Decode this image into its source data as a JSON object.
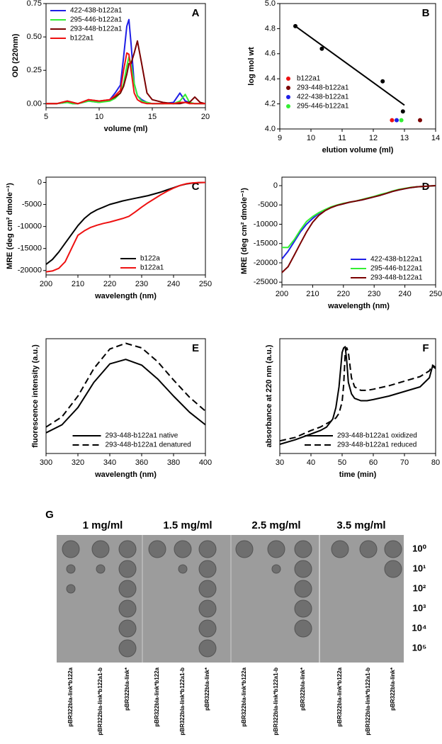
{
  "chart_data": [
    {
      "type": "line",
      "panel_label": "A",
      "xlabel": "volume (ml)",
      "ylabel": "OD (220nm)",
      "legend": "upper left",
      "xlim": [
        5,
        20
      ],
      "xticks": [
        5,
        10,
        15,
        20
      ],
      "ylim": [
        -0.03,
        0.75
      ],
      "yticks": [
        {
          "value": 0,
          "label": "0.00"
        },
        {
          "value": 0.25,
          "label": "0.25"
        },
        {
          "value": 0.5,
          "label": "0.50"
        },
        {
          "value": 0.75,
          "label": "0.75"
        }
      ],
      "x": [
        5,
        6,
        7,
        7.5,
        8,
        9,
        10,
        11,
        11.5,
        12,
        12.3,
        12.6,
        12.8,
        13,
        13.3,
        13.6,
        14,
        14.5,
        15,
        16,
        17,
        17.6,
        18.1,
        18.5,
        19,
        19.5,
        20
      ],
      "series": [
        {
          "name": "422-438-b122a1",
          "color": "#1f1fe6",
          "values": [
            0,
            0,
            0.01,
            0,
            0,
            0.02,
            0.01,
            0.03,
            0.08,
            0.14,
            0.35,
            0.58,
            0.63,
            0.45,
            0.15,
            0.06,
            0.03,
            0.01,
            0,
            0,
            0.01,
            0.08,
            0.02,
            0.01,
            0,
            0,
            0
          ]
        },
        {
          "name": "295-446-b122a1",
          "color": "#33ee33",
          "values": [
            0,
            0,
            0.01,
            0,
            0,
            0.02,
            0.01,
            0.02,
            0.04,
            0.08,
            0.15,
            0.28,
            0.35,
            0.3,
            0.15,
            0.06,
            0.02,
            0.01,
            0,
            0,
            0,
            0.02,
            0.07,
            0.01,
            0,
            0,
            0
          ]
        },
        {
          "name": "293-448-b122a1",
          "color": "#7a0000",
          "values": [
            0,
            0,
            0.02,
            0.01,
            0,
            0.03,
            0.02,
            0.03,
            0.05,
            0.08,
            0.13,
            0.22,
            0.3,
            0.3,
            0.38,
            0.47,
            0.3,
            0.08,
            0.03,
            0.01,
            0,
            0,
            0.01,
            0.01,
            0.05,
            0.01,
            0
          ]
        },
        {
          "name": "b122a1",
          "color": "#ee1111",
          "values": [
            0,
            0,
            0.02,
            0.01,
            0,
            0.03,
            0.02,
            0.03,
            0.06,
            0.1,
            0.25,
            0.38,
            0.37,
            0.25,
            0.08,
            0.03,
            0.01,
            0,
            0,
            0,
            0,
            0.01,
            0.01,
            0,
            0,
            0,
            0
          ]
        }
      ]
    },
    {
      "type": "scatter",
      "panel_label": "B",
      "xlabel": "elution volume (ml)",
      "ylabel": "log mol wt",
      "legend": "lower left",
      "xlim": [
        9,
        14
      ],
      "xticks": [
        9,
        10,
        11,
        12,
        13,
        14
      ],
      "ylim": [
        4.0,
        5.0
      ],
      "yticks": [
        {
          "value": 4,
          "label": "4.0"
        },
        4.2,
        4.4,
        4.6,
        4.8,
        {
          "value": 5,
          "label": "5.0"
        }
      ],
      "series": [
        {
          "color": "#000000",
          "x": [
            9.5,
            10.35,
            12.3,
            12.95
          ],
          "values": [
            4.82,
            4.64,
            4.38,
            4.14
          ]
        },
        {
          "color": "#000000",
          "style": "line",
          "x": [
            9.5,
            13
          ],
          "values": [
            4.82,
            4.19
          ]
        },
        {
          "name": "b122a1",
          "color": "#ee1111",
          "x": [
            12.6
          ],
          "values": [
            4.07
          ]
        },
        {
          "name": "293-448-b122a1",
          "color": "#7a0000",
          "x": [
            13.5
          ],
          "values": [
            4.07
          ]
        },
        {
          "name": "422-438-b122a1",
          "color": "#1f1fe6",
          "x": [
            12.75
          ],
          "values": [
            4.07
          ]
        },
        {
          "name": "295-446-b122a1",
          "color": "#33ee33",
          "x": [
            12.9
          ],
          "values": [
            4.07
          ]
        }
      ]
    },
    {
      "type": "line",
      "panel_label": "C",
      "xlabel": "wavelength (nm)",
      "ylabel": "MRE (deg cm² dmole⁻¹)",
      "legend": "lower right",
      "xlim": [
        200,
        250
      ],
      "xticks": [
        200,
        210,
        220,
        230,
        240,
        250
      ],
      "ylim": [
        -21000,
        1200
      ],
      "yticks": [
        -20000,
        -15000,
        -10000,
        -5000,
        0
      ],
      "x": [
        200,
        202,
        204,
        206,
        208,
        210,
        212,
        214,
        216,
        218,
        220,
        222,
        224,
        226,
        228,
        230,
        232,
        234,
        236,
        238,
        240,
        242,
        244,
        246,
        248,
        250
      ],
      "series": [
        {
          "name": "b122a",
          "color": "#000000",
          "values": [
            -18600,
            -17500,
            -15800,
            -13800,
            -11800,
            -9800,
            -8200,
            -7000,
            -6200,
            -5600,
            -5000,
            -4600,
            -4200,
            -3900,
            -3600,
            -3300,
            -3000,
            -2600,
            -2200,
            -1700,
            -1200,
            -700,
            -350,
            -150,
            -50,
            0
          ]
        },
        {
          "name": "b122a1",
          "color": "#ee1111",
          "values": [
            -20300,
            -20100,
            -19500,
            -18000,
            -15000,
            -12000,
            -11000,
            -10200,
            -9700,
            -9300,
            -9000,
            -8600,
            -8200,
            -7700,
            -6700,
            -5600,
            -4600,
            -3700,
            -2800,
            -2000,
            -1300,
            -700,
            -300,
            -100,
            -30,
            0
          ]
        }
      ]
    },
    {
      "type": "line",
      "panel_label": "D",
      "xlabel": "wavelength (nm)",
      "ylabel": "MRE (deg cm² dmole⁻¹)",
      "legend": "lower right",
      "xlim": [
        200,
        250
      ],
      "xticks": [
        200,
        210,
        220,
        230,
        240,
        250
      ],
      "ylim": [
        -25700,
        2200
      ],
      "yticks": [
        -25000,
        -20000,
        -15000,
        -10000,
        -5000,
        0
      ],
      "x": [
        200,
        202,
        204,
        206,
        208,
        210,
        212,
        214,
        216,
        218,
        220,
        222,
        224,
        226,
        228,
        230,
        232,
        234,
        236,
        238,
        240,
        242,
        244,
        246,
        248,
        250
      ],
      "series": [
        {
          "name": "422-438-b122a1",
          "color": "#1f1fe6",
          "values": [
            -19000,
            -17000,
            -14500,
            -12000,
            -10000,
            -8500,
            -7200,
            -6300,
            -5600,
            -5100,
            -4700,
            -4300,
            -4000,
            -3700,
            -3300,
            -2900,
            -2500,
            -2000,
            -1500,
            -1100,
            -800,
            -500,
            -300,
            -200,
            -100,
            0
          ]
        },
        {
          "name": "295-446-b122a1",
          "color": "#33ee33",
          "values": [
            -16000,
            -16000,
            -14000,
            -11500,
            -9300,
            -8000,
            -7000,
            -6200,
            -5500,
            -5000,
            -4600,
            -4300,
            -4000,
            -3600,
            -3200,
            -2800,
            -2300,
            -1900,
            -1400,
            -1000,
            -700,
            -450,
            -300,
            -200,
            -100,
            0
          ]
        },
        {
          "name": "293-448-b122a1",
          "color": "#7a0000",
          "values": [
            -22500,
            -21000,
            -18000,
            -15000,
            -12000,
            -9500,
            -7700,
            -6500,
            -5700,
            -5100,
            -4700,
            -4300,
            -4000,
            -3700,
            -3300,
            -2900,
            -2500,
            -2000,
            -1500,
            -1100,
            -800,
            -500,
            -300,
            -200,
            -100,
            0
          ]
        }
      ]
    },
    {
      "type": "line",
      "panel_label": "E",
      "xlabel": "wavelength (nm)",
      "ylabel": "fluorescence intensity (a.u.)",
      "legend": "lower center",
      "xlim": [
        300,
        400
      ],
      "xticks": [
        300,
        320,
        340,
        360,
        380,
        400
      ],
      "ylim": [
        0,
        100
      ],
      "x": [
        300,
        310,
        320,
        330,
        340,
        350,
        360,
        370,
        380,
        390,
        400
      ],
      "series": [
        {
          "name": "293-448-b122a1 native",
          "color": "#000000",
          "values": [
            18,
            25,
            40,
            62,
            78,
            82,
            77,
            65,
            50,
            36,
            25
          ]
        },
        {
          "name": "293-448-b122a1 denatured",
          "color": "#000000",
          "dashed": true,
          "values": [
            23,
            32,
            50,
            74,
            91,
            96,
            92,
            80,
            64,
            49,
            37
          ]
        }
      ]
    },
    {
      "type": "line",
      "panel_label": "F",
      "xlabel": "time (min)",
      "ylabel": "absorbance at 220 nm (a.u.)",
      "legend": "lower center",
      "xlim": [
        30,
        80
      ],
      "xticks": [
        30,
        40,
        50,
        60,
        70,
        80
      ],
      "ylim": [
        0,
        100
      ],
      "x": [
        30,
        35,
        40,
        43,
        45,
        47,
        48,
        49,
        50,
        50.5,
        51,
        51.5,
        52,
        53,
        54,
        56,
        58,
        60,
        65,
        70,
        75,
        78,
        79,
        80
      ],
      "series": [
        {
          "name": "293-448-b122a1 oxidized",
          "color": "#000000",
          "values": [
            8,
            12,
            17,
            20,
            23,
            30,
            40,
            58,
            88,
            92,
            93,
            80,
            62,
            52,
            48,
            46,
            46,
            47,
            50,
            54,
            58,
            66,
            76,
            74
          ]
        },
        {
          "name": "293-448-b122a1 reduced",
          "color": "#000000",
          "dashed": true,
          "values": [
            11,
            14,
            20,
            23,
            26,
            29,
            31,
            35,
            45,
            60,
            88,
            92,
            88,
            66,
            58,
            55,
            55,
            56,
            59,
            63,
            67,
            72,
            77,
            75
          ]
        }
      ]
    }
  ],
  "panel_g": {
    "label": "G",
    "concentrations": [
      "1 mg/ml",
      "1.5 mg/ml",
      "2.5 mg/ml",
      "3.5 mg/ml"
    ],
    "dilutions": [
      "10⁰",
      "10¹",
      "10²",
      "10³",
      "10⁴",
      "10⁵"
    ],
    "strains": [
      "pBR322bla-link*b122a",
      "pBR322bla-link*b122a1-b",
      "pBR322bla-link*",
      "pBR322bla-link*b122a",
      "pBR322bla-link*b122a1-b",
      "pBR322bla-link*",
      "pBR322bla-link*b122a",
      "pBR322bla-link*b122a1-b",
      "pBR322bla-link*",
      "pBR322bla-link*b122a",
      "pBR322bla-link*b122a1-b",
      "pBR322bla-link*"
    ]
  }
}
